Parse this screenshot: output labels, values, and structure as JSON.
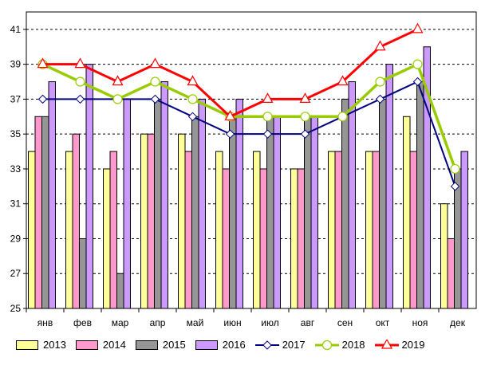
{
  "chart_data": {
    "type": "bar+line",
    "title": "",
    "xlabel": "",
    "ylabel": "",
    "ylim": [
      25,
      42
    ],
    "yticks": [
      25,
      27,
      29,
      31,
      33,
      35,
      37,
      39,
      41
    ],
    "grid": true,
    "legend_position": "bottom",
    "categories": [
      "янв",
      "фев",
      "мар",
      "апр",
      "май",
      "июн",
      "июл",
      "авг",
      "сен",
      "окт",
      "ноя",
      "дек"
    ],
    "series": [
      {
        "name": "2013",
        "kind": "bar",
        "color": "#FFFF99",
        "values": [
          34,
          34,
          33,
          35,
          35,
          34,
          34,
          33,
          34,
          34,
          36,
          31
        ]
      },
      {
        "name": "2014",
        "kind": "bar",
        "color": "#FF99CC",
        "values": [
          36,
          35,
          34,
          35,
          34,
          33,
          33,
          33,
          34,
          34,
          34,
          29
        ]
      },
      {
        "name": "2015",
        "kind": "bar",
        "color": "#969696",
        "values": [
          36,
          29,
          27,
          37,
          36,
          36,
          36,
          36,
          37,
          37,
          38,
          33
        ]
      },
      {
        "name": "2016",
        "kind": "bar",
        "color": "#CC99FF",
        "values": [
          38,
          39,
          37,
          38,
          37,
          37,
          36,
          36,
          38,
          39,
          40,
          34
        ]
      },
      {
        "name": "2017",
        "kind": "line",
        "color": "#000080",
        "marker": "diamond",
        "values": [
          37,
          37,
          37,
          37,
          36,
          35,
          35,
          35,
          36,
          37,
          38,
          32
        ]
      },
      {
        "name": "2018",
        "kind": "line",
        "color": "#99CC00",
        "marker": "circle",
        "values": [
          39,
          38,
          37,
          38,
          37,
          36,
          36,
          36,
          36,
          38,
          39,
          33
        ]
      },
      {
        "name": "2019",
        "kind": "line",
        "color": "#FF0000",
        "marker": "triangle",
        "values": [
          39,
          39,
          38,
          39,
          38,
          36,
          37,
          37,
          38,
          40,
          41,
          null
        ]
      }
    ]
  }
}
